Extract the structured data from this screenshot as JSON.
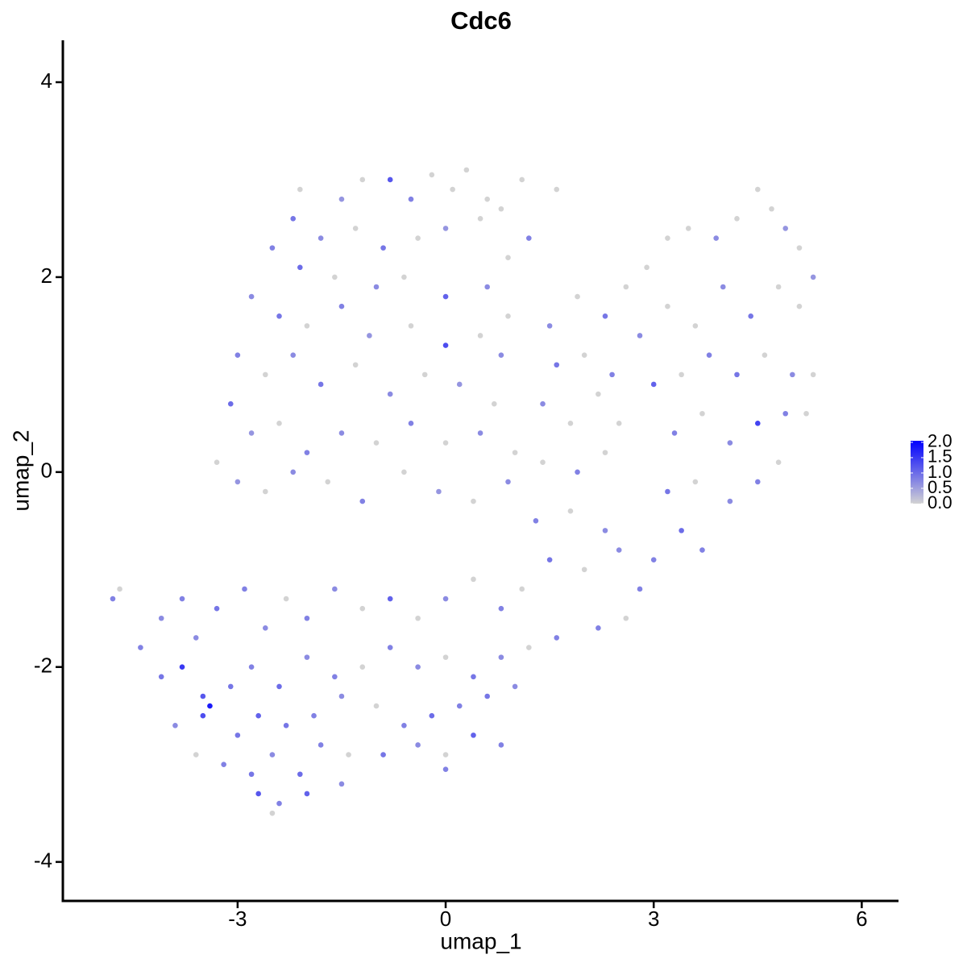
{
  "chart_data": {
    "type": "scatter",
    "title": "Cdc6",
    "xlabel": "umap_1",
    "ylabel": "umap_2",
    "xlim": [
      -5.52,
      6.53
    ],
    "ylim": [
      -4.4,
      4.43
    ],
    "xticks": [
      -3,
      0,
      3,
      6
    ],
    "yticks": [
      -4,
      -2,
      0,
      2,
      4
    ],
    "low_color": "#d3d3d3",
    "high_color": "#0000ff",
    "colorbar": {
      "lim": [
        0,
        2.05
      ],
      "ticks": [
        {
          "value": 0,
          "label": "0.0"
        },
        {
          "value": 0.5,
          "label": "0.5"
        },
        {
          "value": 1,
          "label": "1.0"
        },
        {
          "value": 1.5,
          "label": "1.5"
        },
        {
          "value": 2,
          "label": "2.0"
        }
      ]
    },
    "x": [
      -2.1,
      -1.5,
      -1.2,
      -0.8,
      -0.5,
      -0.2,
      0.1,
      0.3,
      0.6,
      0.8,
      1.1,
      1.6,
      -2.2,
      -1.8,
      -1.3,
      -0.9,
      -0.4,
      0.0,
      0.5,
      0.9,
      1.2,
      -2.5,
      -2.1,
      -1.6,
      -1.0,
      -0.6,
      0.0,
      0.6,
      0.9,
      -2.8,
      -2.4,
      -2.0,
      -1.5,
      -1.1,
      -0.5,
      0.0,
      0.5,
      0.8,
      -3.0,
      -2.6,
      -2.2,
      -1.8,
      -1.3,
      -0.8,
      -0.3,
      0.2,
      0.7,
      -3.1,
      -2.8,
      -2.4,
      -2.0,
      -1.5,
      -1.0,
      -0.5,
      0.0,
      0.5,
      1.0,
      -3.3,
      -3.0,
      -2.6,
      -2.2,
      -1.7,
      -1.2,
      -0.6,
      -0.1,
      0.4,
      0.9,
      1.4,
      1.5,
      1.9,
      2.3,
      2.6,
      2.9,
      3.2,
      3.5,
      3.9,
      4.2,
      4.5,
      4.7,
      4.9,
      5.1,
      5.3,
      1.6,
      2.0,
      2.4,
      2.8,
      3.2,
      3.6,
      4.0,
      4.4,
      4.8,
      5.1,
      1.4,
      1.8,
      2.2,
      2.5,
      3.0,
      3.4,
      3.8,
      4.2,
      4.6,
      5.0,
      5.3,
      1.9,
      2.3,
      3.3,
      3.7,
      4.1,
      4.5,
      4.9,
      5.2,
      1.3,
      1.8,
      2.3,
      3.2,
      3.6,
      4.1,
      4.5,
      4.8,
      1.5,
      2.0,
      2.5,
      3.0,
      3.4,
      3.7,
      2.8,
      2.6,
      2.2,
      -4.7,
      -4.8,
      -4.4,
      -4.1,
      -3.8,
      -3.6,
      -3.3,
      -2.9,
      -2.6,
      -2.3,
      -2.0,
      -1.6,
      -1.2,
      -0.8,
      -0.4,
      0.0,
      0.4,
      0.8,
      1.1,
      -4.1,
      -3.8,
      -3.5,
      -3.1,
      -2.8,
      -2.4,
      -2.0,
      -1.6,
      -1.2,
      -0.8,
      -0.4,
      0.0,
      0.4,
      0.8,
      1.2,
      1.6,
      -3.9,
      -3.5,
      -3.4,
      -3.0,
      -2.7,
      -2.3,
      -1.9,
      -1.5,
      -1.0,
      -0.6,
      -0.2,
      0.2,
      0.6,
      1.0,
      -3.6,
      -3.2,
      -2.8,
      -2.5,
      -2.1,
      -1.8,
      -1.4,
      -0.9,
      -0.4,
      0.0,
      0.4,
      0.8,
      -2.7,
      -2.4,
      -2.5,
      -2.0,
      -1.5,
      0.0
    ],
    "y": [
      2.9,
      2.8,
      3.0,
      3.0,
      2.8,
      3.05,
      2.9,
      3.1,
      2.8,
      2.7,
      3.0,
      2.9,
      2.6,
      2.4,
      2.5,
      2.3,
      2.4,
      2.5,
      2.6,
      2.2,
      2.4,
      2.3,
      2.1,
      2.0,
      1.9,
      2.0,
      1.8,
      1.9,
      1.6,
      1.8,
      1.6,
      1.5,
      1.7,
      1.4,
      1.5,
      1.3,
      1.4,
      1.2,
      1.2,
      1.0,
      1.2,
      0.9,
      1.1,
      0.8,
      1.0,
      0.9,
      0.7,
      0.7,
      0.4,
      0.5,
      0.2,
      0.4,
      0.3,
      0.5,
      0.3,
      0.4,
      0.2,
      0.1,
      -0.1,
      -0.2,
      0.0,
      -0.1,
      -0.3,
      0.0,
      -0.2,
      -0.3,
      -0.1,
      0.1,
      1.5,
      1.8,
      1.6,
      1.9,
      2.1,
      2.4,
      2.5,
      2.4,
      2.6,
      2.9,
      2.7,
      2.5,
      2.3,
      2.0,
      1.1,
      1.2,
      1.0,
      1.4,
      1.7,
      1.5,
      1.9,
      1.6,
      1.9,
      1.7,
      0.7,
      0.5,
      0.8,
      0.5,
      0.9,
      1.0,
      1.2,
      1.0,
      1.2,
      1.0,
      1.0,
      0.0,
      0.2,
      0.4,
      0.6,
      0.3,
      0.5,
      0.6,
      0.6,
      -0.5,
      -0.4,
      -0.6,
      -0.2,
      -0.1,
      -0.3,
      -0.1,
      0.1,
      -0.9,
      -1.0,
      -0.8,
      -0.9,
      -0.6,
      -0.8,
      -1.2,
      -1.5,
      -1.6,
      -1.2,
      -1.3,
      -1.8,
      -1.5,
      -1.3,
      -1.7,
      -1.4,
      -1.2,
      -1.6,
      -1.3,
      -1.5,
      -1.2,
      -1.4,
      -1.3,
      -1.5,
      -1.3,
      -1.1,
      -1.4,
      -1.2,
      -2.1,
      -2.0,
      -2.3,
      -2.2,
      -2.0,
      -2.2,
      -1.9,
      -2.1,
      -2.0,
      -1.8,
      -2.0,
      -1.9,
      -2.1,
      -1.9,
      -1.8,
      -1.7,
      -2.6,
      -2.5,
      -2.4,
      -2.7,
      -2.5,
      -2.6,
      -2.5,
      -2.3,
      -2.4,
      -2.6,
      -2.5,
      -2.4,
      -2.3,
      -2.2,
      -2.9,
      -3.0,
      -3.1,
      -2.9,
      -3.1,
      -2.8,
      -2.9,
      -2.9,
      -2.8,
      -2.9,
      -2.7,
      -2.8,
      -3.3,
      -3.4,
      -3.5,
      -3.3,
      -3.2,
      -3.05
    ],
    "values": [
      0,
      0.6,
      0,
      1.2,
      0.8,
      0,
      0,
      0,
      0,
      0,
      0,
      0,
      0.9,
      0.7,
      0,
      0.9,
      0,
      0.6,
      0,
      0,
      0.8,
      0.8,
      1.0,
      0,
      0.7,
      0,
      1.1,
      0.7,
      0,
      0.7,
      0.9,
      0,
      0.8,
      0.6,
      0,
      1.3,
      0,
      0.7,
      0.8,
      0,
      0.7,
      0.9,
      0,
      0.7,
      0,
      0.6,
      0,
      1.0,
      0.6,
      0,
      0.8,
      0.7,
      0,
      0.8,
      0,
      0.7,
      0,
      0,
      0.6,
      0,
      0.7,
      0,
      0.8,
      0,
      0.6,
      0,
      0.7,
      0,
      0.7,
      0,
      0.9,
      0,
      0,
      0,
      0,
      0.7,
      0,
      0,
      0,
      0.6,
      0,
      0.6,
      0.9,
      0,
      0.8,
      0.7,
      0,
      0,
      0.7,
      0.9,
      0,
      0,
      0.7,
      0,
      0,
      0,
      1.1,
      0,
      0.8,
      0.9,
      0,
      0.7,
      0,
      0.8,
      0,
      0.8,
      0,
      0.7,
      1.4,
      0.8,
      0,
      0.8,
      0,
      0.7,
      0.9,
      0,
      0.7,
      0.8,
      0,
      0.9,
      0,
      0.7,
      0.8,
      1.0,
      0.8,
      0.8,
      0,
      0.8,
      0,
      0.8,
      0.8,
      0.7,
      0.8,
      0.7,
      0.9,
      0.8,
      0.7,
      0,
      0.8,
      0.7,
      0,
      1.1,
      0,
      0.7,
      0,
      0.8,
      0,
      0.9,
      1.5,
      1.2,
      0.9,
      0.8,
      1.0,
      0.7,
      0.8,
      0,
      0.8,
      0.7,
      0,
      0.9,
      0.7,
      0,
      0.8,
      0.7,
      1.3,
      1.8,
      0.9,
      1.1,
      0.9,
      0.8,
      0.7,
      0,
      0.8,
      1.0,
      0.8,
      0.9,
      0.7,
      0,
      0.8,
      0.9,
      0.7,
      1.0,
      0.8,
      0,
      0.9,
      0.7,
      0,
      1.1,
      0.8,
      1.2,
      0.8,
      0,
      1.1,
      0.7,
      0.8
    ]
  }
}
